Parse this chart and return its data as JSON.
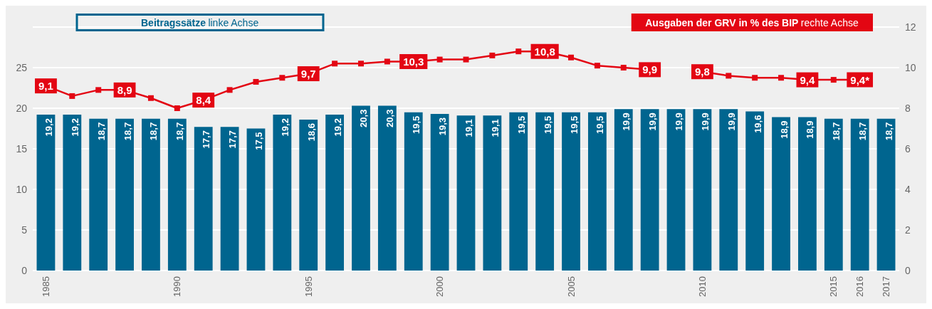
{
  "chart_data": {
    "type": "bar",
    "categories": [
      "1985",
      null,
      null,
      null,
      null,
      "1990",
      null,
      null,
      null,
      null,
      "1995",
      null,
      null,
      null,
      null,
      "2000",
      null,
      null,
      null,
      null,
      "2005",
      null,
      null,
      null,
      null,
      "2010",
      null,
      null,
      null,
      null,
      "2015",
      "2016",
      "2017"
    ],
    "series": [
      {
        "name": "Beitragssätze linke Achse",
        "color": "#00658f",
        "values": [
          19.2,
          19.2,
          18.7,
          18.7,
          18.7,
          18.7,
          17.7,
          17.7,
          17.5,
          19.2,
          18.6,
          19.2,
          20.3,
          20.3,
          19.5,
          19.3,
          19.1,
          19.1,
          19.5,
          19.5,
          19.5,
          19.5,
          19.9,
          19.9,
          19.9,
          19.9,
          19.9,
          19.6,
          18.9,
          18.9,
          18.7,
          18.7,
          18.7
        ],
        "value_labels": [
          "19,2",
          "19,2",
          "18,7",
          "18,7",
          "18,7",
          "18,7",
          "17,7",
          "17,7",
          "17,5",
          "19,2",
          "18,6",
          "19,2",
          "20,3",
          "20,3",
          "19,5",
          "19,3",
          "19,1",
          "19,1",
          "19,5",
          "19,5",
          "19,5",
          "19,5",
          "19,9",
          "19,9",
          "19,9",
          "19,9",
          "19,9",
          "19,6",
          "18,9",
          "18,9",
          "18,7",
          "18,7",
          "18,7"
        ]
      },
      {
        "name": "Ausgaben der GRV in % des BIP rechte Achse",
        "type": "line",
        "axis": "y2",
        "color": "#e30613",
        "values": [
          9.1,
          8.6,
          8.9,
          8.9,
          8.5,
          8.0,
          8.4,
          8.9,
          9.3,
          9.5,
          9.7,
          10.2,
          10.2,
          10.3,
          10.3,
          10.4,
          10.4,
          10.6,
          10.8,
          10.8,
          10.5,
          10.1,
          10.0,
          9.9,
          null,
          9.8,
          9.6,
          9.5,
          9.5,
          9.4,
          9.4,
          9.4,
          null
        ],
        "value_labels": [
          "9,1",
          null,
          null,
          "8,9",
          null,
          null,
          "8,4",
          null,
          null,
          null,
          "9,7",
          null,
          null,
          null,
          "10,3",
          null,
          null,
          null,
          null,
          "10,8",
          null,
          null,
          null,
          "9,9",
          null,
          "9,8",
          null,
          null,
          null,
          "9,4",
          null,
          "9,4*",
          null
        ]
      }
    ],
    "ylim": [
      0,
      30
    ],
    "yticks": [
      0,
      5,
      10,
      15,
      20,
      25,
      {
        "value": 30,
        "label": null
      }
    ],
    "y2lim": [
      0,
      12
    ],
    "y2ticks": [
      0,
      2,
      4,
      6,
      8,
      10,
      12
    ],
    "grid": "y",
    "legend": "top",
    "marker": "square",
    "line_style": "solid"
  }
}
